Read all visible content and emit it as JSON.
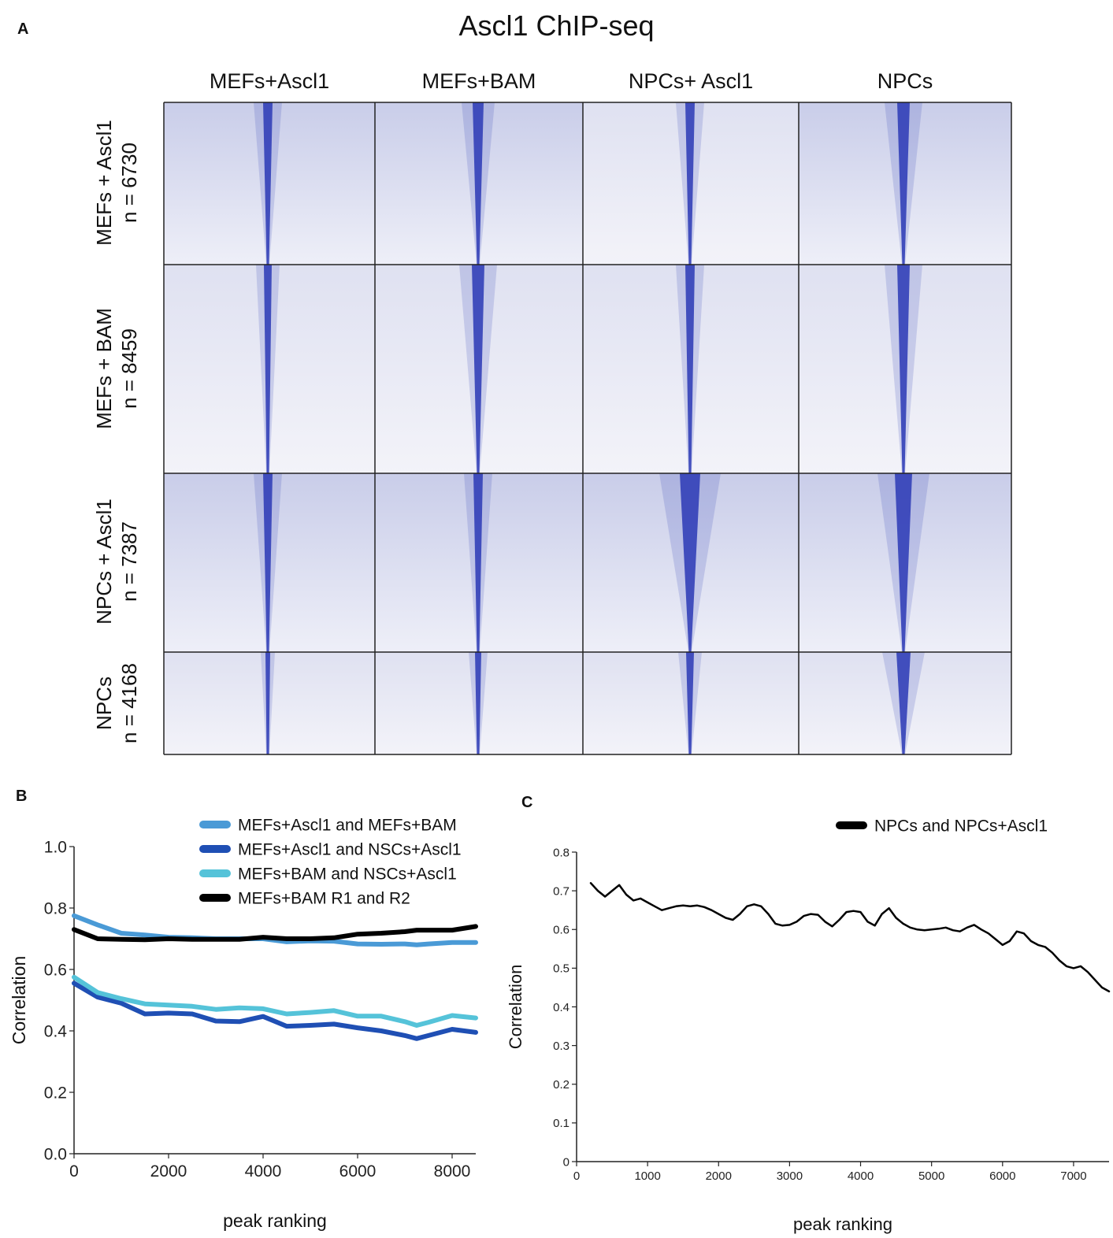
{
  "panels": {
    "a": "A",
    "b": "B",
    "c": "C"
  },
  "heatmap": {
    "title": "Ascl1 ChIP-seq",
    "columns": [
      "MEFs+Ascl1",
      "MEFs+BAM",
      "NPCs+ Ascl1",
      "NPCs"
    ],
    "rows": [
      {
        "name": "MEFs + Ascl1",
        "n": "n = 6730"
      },
      {
        "name": "MEFs + BAM",
        "n": "n = 8459"
      },
      {
        "name": "NPCs + Ascl1",
        "n": "n = 7387"
      },
      {
        "name": "NPCs",
        "n": "n = 4168"
      }
    ],
    "color": "#3340b8"
  },
  "chart_data": [
    {
      "type": "line",
      "panel": "B",
      "xlabel": "peak ranking",
      "ylabel": "Correlation",
      "xlim": [
        0,
        8500
      ],
      "ylim": [
        0,
        1.0
      ],
      "xticks": [
        "0",
        "2000",
        "4000",
        "6000",
        "8000"
      ],
      "yticks": [
        "0.0",
        "0.2",
        "0.4",
        "0.6",
        "0.8",
        "1.0"
      ],
      "legend_position": "top-right",
      "x": [
        0,
        500,
        1000,
        1500,
        2000,
        2500,
        3000,
        3500,
        4000,
        4500,
        5000,
        5500,
        6000,
        6500,
        7000,
        7250,
        7500,
        8000,
        8500
      ],
      "series": [
        {
          "name": "MEFs+Ascl1 and MEFs+BAM",
          "color": "#4a9ad6",
          "values": [
            0.775,
            0.745,
            0.718,
            0.712,
            0.705,
            0.703,
            0.7,
            0.7,
            0.7,
            0.69,
            0.693,
            0.692,
            0.683,
            0.682,
            0.683,
            0.68,
            0.683,
            0.688,
            0.688
          ]
        },
        {
          "name": "MEFs+Ascl1 and NSCs+Ascl1",
          "color": "#1f4fb4",
          "values": [
            0.555,
            0.51,
            0.49,
            0.455,
            0.458,
            0.455,
            0.432,
            0.43,
            0.447,
            0.415,
            0.418,
            0.422,
            0.41,
            0.4,
            0.385,
            0.375,
            0.385,
            0.405,
            0.395
          ]
        },
        {
          "name": "MEFs+BAM and NSCs+Ascl1",
          "color": "#55c3d9",
          "values": [
            0.575,
            0.525,
            0.505,
            0.488,
            0.484,
            0.48,
            0.47,
            0.475,
            0.472,
            0.455,
            0.46,
            0.466,
            0.448,
            0.448,
            0.43,
            0.418,
            0.428,
            0.45,
            0.442
          ]
        },
        {
          "name": "MEFs+BAM R1 and R2",
          "color": "#000000",
          "values": [
            0.73,
            0.7,
            0.698,
            0.697,
            0.7,
            0.698,
            0.698,
            0.698,
            0.705,
            0.7,
            0.7,
            0.703,
            0.715,
            0.718,
            0.723,
            0.728,
            0.728,
            0.728,
            0.74
          ]
        }
      ]
    },
    {
      "type": "line",
      "panel": "C",
      "xlabel": "peak ranking",
      "ylabel": "Correlation",
      "xlim": [
        0,
        7500
      ],
      "ylim": [
        0,
        0.8
      ],
      "xticks": [
        "0",
        "1000",
        "2000",
        "3000",
        "4000",
        "5000",
        "6000",
        "7000"
      ],
      "yticks": [
        "0",
        "0.1",
        "0.2",
        "0.3",
        "0.4",
        "0.5",
        "0.6",
        "0.7",
        "0.8"
      ],
      "legend_position": "top-right",
      "x": [
        200,
        300,
        400,
        500,
        600,
        700,
        800,
        900,
        1000,
        1100,
        1200,
        1300,
        1400,
        1500,
        1600,
        1700,
        1800,
        1900,
        2000,
        2100,
        2200,
        2300,
        2400,
        2500,
        2600,
        2700,
        2800,
        2900,
        3000,
        3100,
        3200,
        3300,
        3400,
        3500,
        3600,
        3700,
        3800,
        3900,
        4000,
        4100,
        4200,
        4300,
        4400,
        4500,
        4600,
        4700,
        4800,
        4900,
        5000,
        5100,
        5200,
        5300,
        5400,
        5500,
        5600,
        5700,
        5800,
        5900,
        6000,
        6100,
        6200,
        6300,
        6400,
        6500,
        6600,
        6700,
        6800,
        6900,
        7000,
        7100,
        7200,
        7300,
        7400,
        7500
      ],
      "series": [
        {
          "name": "NPCs and NPCs+Ascl1",
          "color": "#000000",
          "values": [
            0.72,
            0.7,
            0.685,
            0.7,
            0.715,
            0.69,
            0.675,
            0.68,
            0.67,
            0.66,
            0.65,
            0.655,
            0.66,
            0.662,
            0.66,
            0.662,
            0.658,
            0.65,
            0.64,
            0.63,
            0.625,
            0.64,
            0.66,
            0.665,
            0.66,
            0.64,
            0.615,
            0.61,
            0.612,
            0.62,
            0.635,
            0.64,
            0.638,
            0.62,
            0.608,
            0.625,
            0.645,
            0.648,
            0.645,
            0.62,
            0.61,
            0.64,
            0.655,
            0.63,
            0.615,
            0.605,
            0.6,
            0.598,
            0.6,
            0.602,
            0.605,
            0.598,
            0.595,
            0.605,
            0.612,
            0.6,
            0.59,
            0.575,
            0.56,
            0.57,
            0.595,
            0.59,
            0.57,
            0.56,
            0.555,
            0.54,
            0.52,
            0.505,
            0.5,
            0.505,
            0.49,
            0.47,
            0.45,
            0.44
          ]
        }
      ]
    }
  ]
}
